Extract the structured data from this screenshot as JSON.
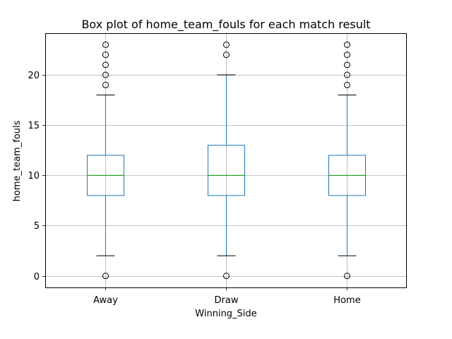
{
  "chart_data": {
    "type": "box",
    "title": "Box plot of home_team_fouls for each match result",
    "xlabel": "Winning_Side",
    "ylabel": "home_team_fouls",
    "ylim": [
      -1.15,
      24.15
    ],
    "yticks": [
      0,
      5,
      10,
      15,
      20
    ],
    "grid": true,
    "colors": {
      "box": "#1f77b4",
      "median": "#2ca02c",
      "whisker_cap": "#000000",
      "grid": "#b0b0b0",
      "frame": "#000000"
    },
    "categories": [
      "Away",
      "Draw",
      "Home"
    ],
    "boxes": [
      {
        "category": "Away",
        "whisker_low": 2,
        "q1": 8,
        "median": 10,
        "q3": 12,
        "whisker_high": 18,
        "outliers": [
          0,
          19,
          20,
          21,
          22,
          23
        ]
      },
      {
        "category": "Draw",
        "whisker_low": 2,
        "q1": 8,
        "median": 10,
        "q3": 13,
        "whisker_high": 20,
        "outliers": [
          0,
          22,
          23
        ]
      },
      {
        "category": "Home",
        "whisker_low": 2,
        "q1": 8,
        "median": 10,
        "q3": 12,
        "whisker_high": 18,
        "outliers": [
          0,
          19,
          20,
          21,
          22,
          23
        ]
      }
    ]
  }
}
